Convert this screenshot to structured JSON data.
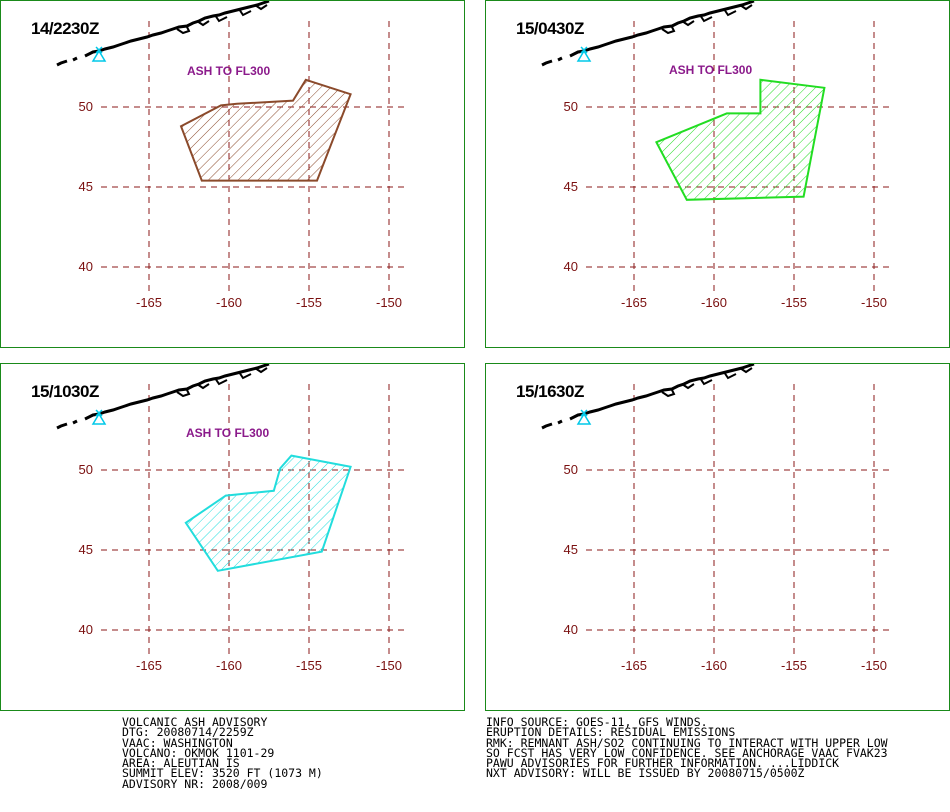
{
  "panels": [
    {
      "time": "14/2230Z",
      "ash_label": "ASH TO FL300",
      "color": "#8b4a2b"
    },
    {
      "time": "15/0430Z",
      "ash_label": "ASH TO FL300",
      "color": "#22dd22"
    },
    {
      "time": "15/1030Z",
      "ash_label": "ASH TO FL300",
      "color": "#22dddd"
    },
    {
      "time": "15/1630Z",
      "ash_label": "",
      "color": ""
    }
  ],
  "axes": {
    "lat_labels": [
      "50",
      "45",
      "40"
    ],
    "lon_labels": [
      "-165",
      "-160",
      "-155",
      "-150"
    ]
  },
  "volcano_marker_color": "#00c8e8",
  "grid_color": "#8b1a1a",
  "advisory_left": [
    "VOLCANIC ASH ADVISORY",
    "DTG: 20080714/2259Z",
    "VAAC: WASHINGTON",
    "VOLCANO: OKMOK 1101-29",
    "AREA: ALEUTIAN IS",
    "SUMMIT ELEV: 3520 FT (1073 M)",
    "ADVISORY NR: 2008/009"
  ],
  "advisory_right": [
    "INFO SOURCE: GOES-11, GFS WINDS.",
    "ERUPTION DETAILS: RESIDUAL EMISSIONS",
    "RMK: REMNANT ASH/SO2 CONTINUING TO INTERACT WITH UPPER LOW",
    "SO FCST HAS VERY LOW CONFIDENCE. SEE ANCHORAGE VAAC FVAK23",
    "PAWU ADVISORIES FOR FURTHER INFORMATION. ...LIDDICK",
    "NXT ADVISORY: WILL BE ISSUED BY 20080715/0500Z"
  ]
}
